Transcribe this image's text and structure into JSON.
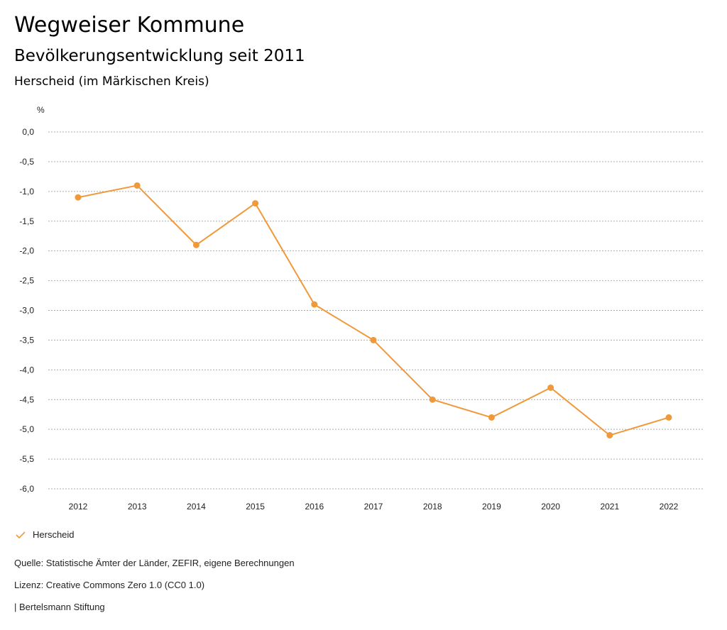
{
  "header": {
    "title": "Wegweiser Kommune",
    "subtitle": "Bevölkerungsentwicklung seit 2011",
    "region": "Herscheid (im Märkischen Kreis)"
  },
  "chart_data": {
    "type": "line",
    "title": "Bevölkerungsentwicklung seit 2011",
    "ylabel": "%",
    "xlabel": "",
    "ylim": [
      -6,
      0
    ],
    "yticks": [
      0,
      -0.5,
      -1,
      -1.5,
      -2,
      -2.5,
      -3,
      -3.5,
      -4,
      -4.5,
      -5,
      -5.5,
      -6
    ],
    "ytick_labels": [
      "0,0",
      "-0,5",
      "-1,0",
      "-1,5",
      "-2,0",
      "-2,5",
      "-3,0",
      "-3,5",
      "-4,0",
      "-4,5",
      "-5,0",
      "-5,5",
      "-6,0"
    ],
    "categories": [
      "2012",
      "2013",
      "2014",
      "2015",
      "2016",
      "2017",
      "2018",
      "2019",
      "2020",
      "2021",
      "2022"
    ],
    "series": [
      {
        "name": "Herscheid",
        "color": "#f0993a",
        "values": [
          -1.1,
          -0.9,
          -1.9,
          -1.2,
          -2.9,
          -3.5,
          -4.5,
          -4.8,
          -4.3,
          -5.1,
          -4.8
        ]
      }
    ],
    "grid": true,
    "legend": "bottom-left"
  },
  "footer": {
    "source": "Quelle: Statistische Ämter der Länder, ZEFIR, eigene Berechnungen",
    "license": "Lizenz: Creative Commons Zero 1.0 (CC0 1.0)",
    "brand": "| Bertelsmann Stiftung"
  }
}
